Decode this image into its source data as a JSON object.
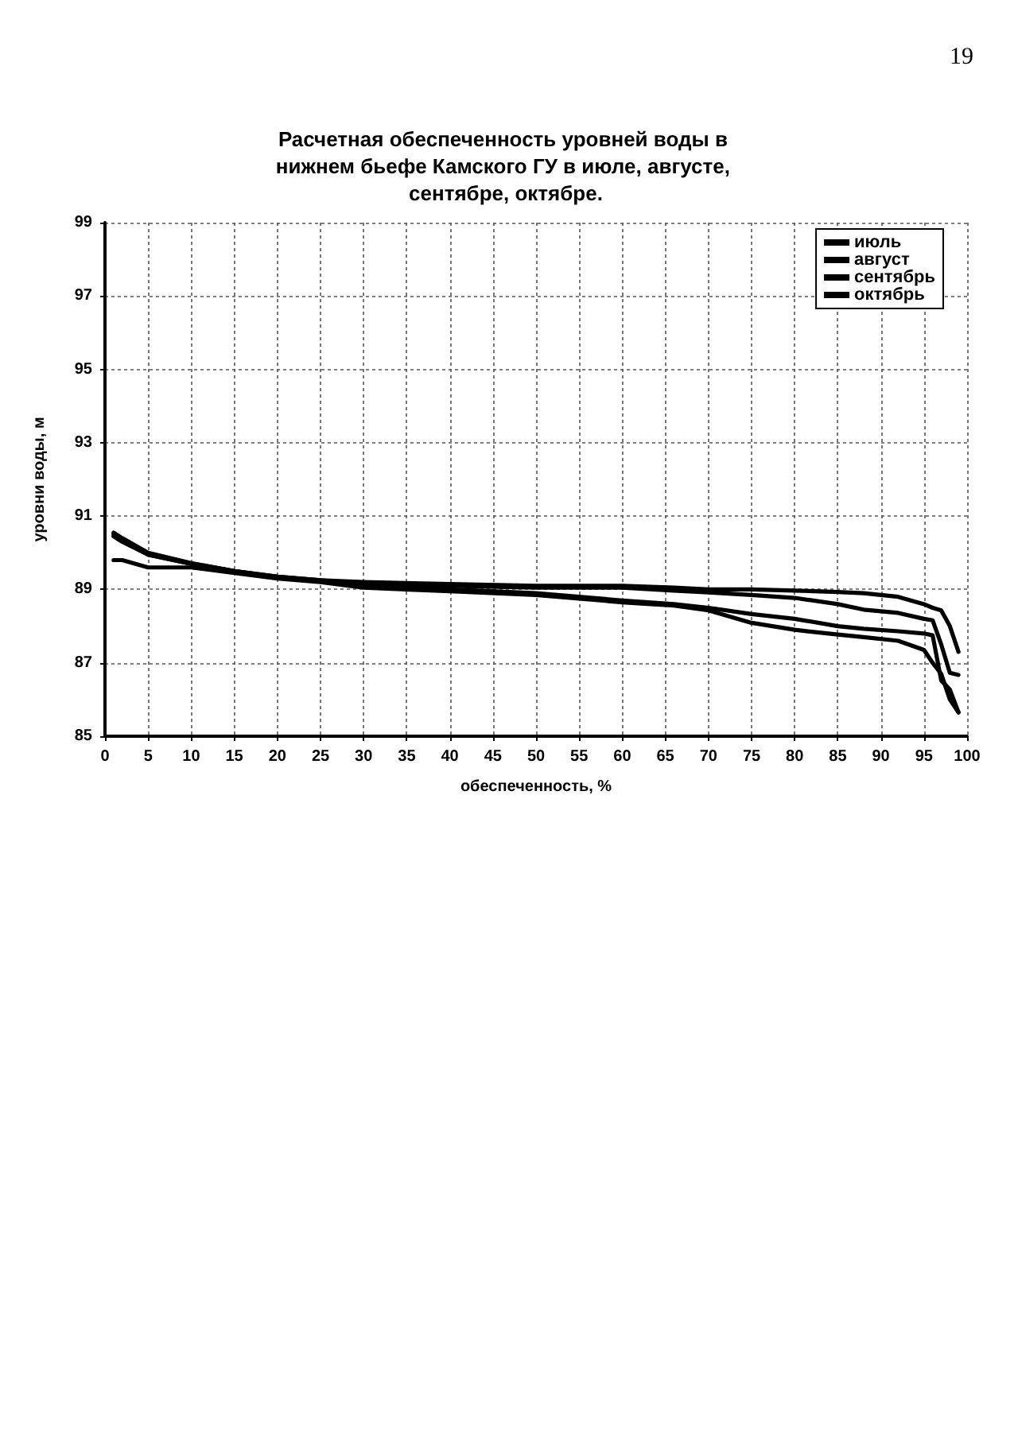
{
  "chart_data": {
    "type": "line",
    "title": "Расчетная обеспеченность уровней воды в нижнем бьефе Камского ГУ в июле, августе, сентябре, октябре.",
    "xlabel": "обеспеченность, %",
    "ylabel": "уровни воды, м",
    "annotations": [
      "19"
    ],
    "x": [
      1,
      2,
      5,
      10,
      15,
      20,
      25,
      30,
      40,
      50,
      60,
      66,
      70,
      75,
      80,
      85,
      88,
      92,
      95,
      96,
      97,
      98,
      99
    ],
    "series": [
      {
        "name": "июль",
        "color": "#000000",
        "values": [
          90.5,
          90.35,
          89.95,
          89.7,
          89.5,
          89.35,
          89.25,
          89.2,
          89.15,
          89.1,
          89.1,
          89.05,
          89.0,
          89.0,
          88.97,
          88.93,
          88.9,
          88.8,
          88.6,
          88.5,
          88.43,
          88.0,
          87.3
        ]
      },
      {
        "name": "август",
        "color": "#000000",
        "values": [
          90.45,
          90.3,
          89.95,
          89.7,
          89.5,
          89.35,
          89.25,
          89.15,
          89.1,
          89.05,
          89.05,
          88.97,
          88.92,
          88.85,
          88.77,
          88.6,
          88.45,
          88.36,
          88.2,
          88.16,
          87.5,
          86.73,
          86.67
        ]
      },
      {
        "name": "сентябрь",
        "color": "#000000",
        "values": [
          90.55,
          90.4,
          90.0,
          89.72,
          89.5,
          89.33,
          89.22,
          89.1,
          89.0,
          88.9,
          88.7,
          88.6,
          88.5,
          88.33,
          88.2,
          88.0,
          87.93,
          87.86,
          87.8,
          87.75,
          86.52,
          86.27,
          85.65
        ]
      },
      {
        "name": "октябрь",
        "color": "#000000",
        "values": [
          89.8,
          89.8,
          89.6,
          89.6,
          89.45,
          89.3,
          89.2,
          89.05,
          88.95,
          88.85,
          88.65,
          88.56,
          88.43,
          88.09,
          87.9,
          87.77,
          87.7,
          87.6,
          87.35,
          87.0,
          86.7,
          86.0,
          85.65
        ]
      }
    ],
    "xlim": [
      0,
      100
    ],
    "xticks": [
      0,
      5,
      10,
      15,
      20,
      25,
      30,
      35,
      40,
      45,
      50,
      55,
      60,
      65,
      70,
      75,
      80,
      85,
      90,
      95,
      100
    ],
    "ylim": [
      85,
      99
    ],
    "yticks": [
      85,
      87,
      89,
      91,
      93,
      95,
      97,
      99
    ],
    "grid": true,
    "legend": "top right",
    "marker": "none",
    "line_style": "solid"
  }
}
